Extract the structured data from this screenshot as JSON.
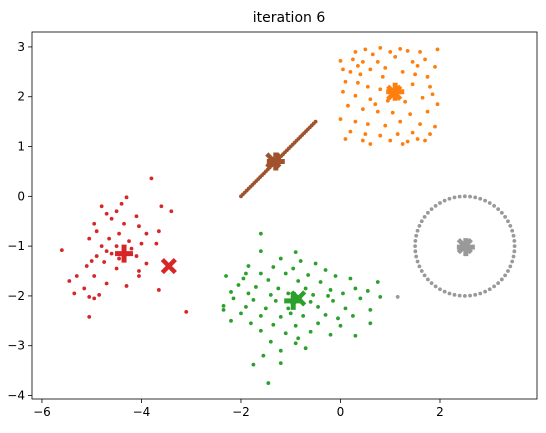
{
  "chart_data": {
    "type": "scatter",
    "title": "iteration 6",
    "xlabel": "",
    "ylabel": "",
    "xlim": [
      -6.2,
      3.95
    ],
    "ylim": [
      -4.07,
      3.3
    ],
    "xticks": [
      -6,
      -4,
      -2,
      0,
      2
    ],
    "yticks": [
      -4,
      -3,
      -2,
      -1,
      0,
      1,
      2,
      3
    ],
    "xtick_labels": [
      "−6",
      "−4",
      "−2",
      "0",
      "2"
    ],
    "ytick_labels": [
      "−4",
      "−3",
      "−2",
      "−1",
      "0",
      "1",
      "2",
      "3"
    ],
    "grid": false,
    "legend": "none",
    "clusters": [
      {
        "color": "#d62728",
        "centroid_markers": [
          {
            "marker": "x",
            "x": -3.45,
            "y": -1.4
          },
          {
            "marker": "plus",
            "x": -4.35,
            "y": -1.15
          }
        ],
        "points": [
          [
            -4.3,
            -0.02
          ],
          [
            -3.8,
            0.36
          ],
          [
            -4.4,
            -0.15
          ],
          [
            -4.7,
            -0.35
          ],
          [
            -4.8,
            -0.2
          ],
          [
            -4.5,
            -0.3
          ],
          [
            -3.6,
            -0.2
          ],
          [
            -3.4,
            -0.3
          ],
          [
            -4.1,
            -0.4
          ],
          [
            -4.6,
            -0.45
          ],
          [
            -4.95,
            -0.55
          ],
          [
            -4.35,
            -0.55
          ],
          [
            -4.05,
            -0.6
          ],
          [
            -3.65,
            -0.7
          ],
          [
            -4.9,
            -0.7
          ],
          [
            -4.45,
            -0.75
          ],
          [
            -3.9,
            -0.75
          ],
          [
            -4.65,
            -0.85
          ],
          [
            -5.05,
            -0.85
          ],
          [
            -4.25,
            -0.9
          ],
          [
            -3.7,
            -0.95
          ],
          [
            -4.0,
            -0.95
          ],
          [
            -4.8,
            -1.0
          ],
          [
            -4.5,
            -1.0
          ],
          [
            -4.35,
            -1.05
          ],
          [
            -5.6,
            -1.08
          ],
          [
            -4.7,
            -1.1
          ],
          [
            -4.6,
            -1.15
          ],
          [
            -4.9,
            -1.2
          ],
          [
            -4.1,
            -1.2
          ],
          [
            -4.45,
            -1.25
          ],
          [
            -5.0,
            -1.3
          ],
          [
            -4.75,
            -1.32
          ],
          [
            -3.9,
            -1.35
          ],
          [
            -5.1,
            -1.4
          ],
          [
            -4.5,
            -1.45
          ],
          [
            -4.05,
            -1.5
          ],
          [
            -4.05,
            -1.6
          ],
          [
            -4.95,
            -1.6
          ],
          [
            -5.3,
            -1.6
          ],
          [
            -5.45,
            -1.7
          ],
          [
            -4.7,
            -1.75
          ],
          [
            -4.3,
            -1.8
          ],
          [
            -5.15,
            -1.85
          ],
          [
            -3.65,
            -1.88
          ],
          [
            -5.35,
            -1.95
          ],
          [
            -4.85,
            -1.98
          ],
          [
            -5.05,
            -2.02
          ],
          [
            -4.95,
            -2.05
          ],
          [
            -3.1,
            -2.32
          ],
          [
            -5.05,
            -2.42
          ],
          [
            -4.2,
            -1.05
          ]
        ]
      },
      {
        "color": "#ff7f0e",
        "centroid_markers": [
          {
            "marker": "x",
            "x": 1.08,
            "y": 2.08
          },
          {
            "marker": "plus",
            "x": 1.1,
            "y": 2.1
          }
        ],
        "points": [
          [
            0.3,
            2.9
          ],
          [
            0.5,
            2.95
          ],
          [
            0.65,
            2.85
          ],
          [
            0.8,
            2.98
          ],
          [
            1.0,
            2.9
          ],
          [
            1.2,
            2.96
          ],
          [
            1.35,
            2.92
          ],
          [
            1.6,
            2.9
          ],
          [
            1.95,
            2.95
          ],
          [
            0.25,
            2.75
          ],
          [
            0.45,
            2.7
          ],
          [
            0.75,
            2.7
          ],
          [
            1.1,
            2.8
          ],
          [
            1.45,
            2.7
          ],
          [
            1.7,
            2.75
          ],
          [
            1.9,
            2.6
          ],
          [
            0.0,
            2.72
          ],
          [
            0.05,
            2.55
          ],
          [
            0.2,
            2.5
          ],
          [
            0.4,
            2.45
          ],
          [
            0.6,
            2.55
          ],
          [
            0.85,
            2.4
          ],
          [
            1.25,
            2.5
          ],
          [
            1.5,
            2.45
          ],
          [
            1.75,
            2.4
          ],
          [
            0.1,
            2.3
          ],
          [
            0.35,
            2.28
          ],
          [
            0.55,
            2.2
          ],
          [
            0.8,
            2.15
          ],
          [
            1.45,
            2.25
          ],
          [
            1.8,
            2.2
          ],
          [
            0.05,
            2.1
          ],
          [
            0.3,
            2.02
          ],
          [
            0.6,
            1.95
          ],
          [
            0.95,
            1.92
          ],
          [
            1.3,
            1.9
          ],
          [
            1.65,
            1.98
          ],
          [
            1.95,
            1.85
          ],
          [
            0.15,
            1.82
          ],
          [
            0.45,
            1.75
          ],
          [
            0.75,
            1.7
          ],
          [
            1.05,
            1.68
          ],
          [
            1.4,
            1.65
          ],
          [
            1.75,
            1.7
          ],
          [
            0.0,
            1.55
          ],
          [
            0.3,
            1.5
          ],
          [
            0.55,
            1.45
          ],
          [
            0.9,
            1.42
          ],
          [
            1.2,
            1.5
          ],
          [
            1.6,
            1.45
          ],
          [
            1.9,
            1.4
          ],
          [
            0.2,
            1.3
          ],
          [
            0.5,
            1.25
          ],
          [
            0.8,
            1.22
          ],
          [
            1.15,
            1.25
          ],
          [
            1.45,
            1.28
          ],
          [
            1.8,
            1.25
          ],
          [
            0.1,
            1.15
          ],
          [
            0.45,
            1.12
          ],
          [
            1.0,
            1.12
          ],
          [
            1.35,
            1.1
          ],
          [
            1.7,
            1.12
          ],
          [
            0.6,
            1.05
          ],
          [
            1.25,
            1.05
          ],
          [
            1.55,
            1.15
          ],
          [
            0.35,
            2.62
          ],
          [
            1.55,
            2.62
          ],
          [
            0.9,
            2.58
          ],
          [
            1.85,
            2.05
          ],
          [
            0.7,
            1.85
          ]
        ]
      },
      {
        "color": "#2ca02c",
        "centroid_markers": [
          {
            "marker": "x",
            "x": -0.85,
            "y": -2.05
          },
          {
            "marker": "plus",
            "x": -0.95,
            "y": -2.1
          }
        ],
        "points": [
          [
            -1.6,
            -0.75
          ],
          [
            -1.6,
            -1.1
          ],
          [
            -0.9,
            -1.12
          ],
          [
            -1.2,
            -1.25
          ],
          [
            -0.8,
            -1.3
          ],
          [
            -0.5,
            -1.35
          ],
          [
            -1.85,
            -1.4
          ],
          [
            -1.35,
            -1.42
          ],
          [
            -0.95,
            -1.45
          ],
          [
            -0.3,
            -1.48
          ],
          [
            -1.6,
            -1.55
          ],
          [
            -1.1,
            -1.55
          ],
          [
            -0.65,
            -1.58
          ],
          [
            -0.1,
            -1.6
          ],
          [
            -2.3,
            -1.6
          ],
          [
            -1.95,
            -1.65
          ],
          [
            -1.45,
            -1.68
          ],
          [
            -0.85,
            -1.7
          ],
          [
            -0.4,
            -1.72
          ],
          [
            0.2,
            -1.65
          ],
          [
            -2.05,
            -1.78
          ],
          [
            -1.7,
            -1.82
          ],
          [
            -1.25,
            -1.85
          ],
          [
            -0.7,
            -1.85
          ],
          [
            -0.2,
            -1.88
          ],
          [
            0.3,
            -1.85
          ],
          [
            -2.2,
            -1.92
          ],
          [
            -1.85,
            -1.95
          ],
          [
            -1.4,
            -1.98
          ],
          [
            -1.05,
            -1.95
          ],
          [
            -0.55,
            -1.98
          ],
          [
            0.05,
            -1.95
          ],
          [
            0.55,
            -1.9
          ],
          [
            -2.15,
            -2.05
          ],
          [
            -1.75,
            -2.08
          ],
          [
            -1.3,
            -2.1
          ],
          [
            -0.6,
            -2.12
          ],
          [
            -0.15,
            -2.1
          ],
          [
            0.4,
            -2.05
          ],
          [
            0.8,
            -2.02
          ],
          [
            -2.35,
            -2.2
          ],
          [
            -1.9,
            -2.22
          ],
          [
            -1.5,
            -2.25
          ],
          [
            -1.05,
            -2.25
          ],
          [
            -0.45,
            -2.22
          ],
          [
            0.1,
            -2.25
          ],
          [
            0.6,
            -2.28
          ],
          [
            -2.0,
            -2.35
          ],
          [
            -1.6,
            -2.4
          ],
          [
            -1.2,
            -2.42
          ],
          [
            -0.75,
            -2.4
          ],
          [
            -0.3,
            -2.38
          ],
          [
            0.25,
            -2.4
          ],
          [
            -2.2,
            -2.5
          ],
          [
            -1.8,
            -2.55
          ],
          [
            -1.35,
            -2.58
          ],
          [
            -0.9,
            -2.6
          ],
          [
            -0.45,
            -2.55
          ],
          [
            0.0,
            -2.6
          ],
          [
            0.6,
            -2.55
          ],
          [
            -1.6,
            -2.7
          ],
          [
            -1.1,
            -2.75
          ],
          [
            -0.6,
            -2.72
          ],
          [
            -0.2,
            -2.78
          ],
          [
            0.3,
            -2.8
          ],
          [
            -1.4,
            -2.92
          ],
          [
            -0.9,
            -2.95
          ],
          [
            -1.2,
            -3.1
          ],
          [
            -0.7,
            -3.05
          ],
          [
            -1.55,
            -3.2
          ],
          [
            -1.2,
            -3.35
          ],
          [
            -1.75,
            -3.38
          ],
          [
            -1.45,
            -3.75
          ],
          [
            -1.0,
            -2.35
          ],
          [
            -0.25,
            -2.0
          ],
          [
            -2.35,
            -2.28
          ],
          [
            -0.05,
            -2.45
          ],
          [
            0.75,
            -1.72
          ],
          [
            -1.9,
            -1.55
          ],
          [
            -0.85,
            -2.85
          ]
        ]
      },
      {
        "color": "#a0522d",
        "centroid_markers": [
          {
            "marker": "x",
            "x": -1.35,
            "y": 0.72
          },
          {
            "marker": "plus",
            "x": -1.3,
            "y": 0.7
          }
        ],
        "line_from": [
          -2.0,
          0.0
        ],
        "line_to": [
          -0.5,
          1.5
        ],
        "line_points": 40
      },
      {
        "color": "#999999",
        "centroid_markers": [
          {
            "marker": "x",
            "x": 2.5,
            "y": -1.0
          },
          {
            "marker": "plus",
            "x": 2.52,
            "y": -1.02
          }
        ],
        "ring_center": [
          2.5,
          -1.0
        ],
        "ring_radius": 1.0,
        "ring_points": 60,
        "extra_points": [
          [
            1.15,
            -2.02
          ]
        ]
      }
    ]
  }
}
